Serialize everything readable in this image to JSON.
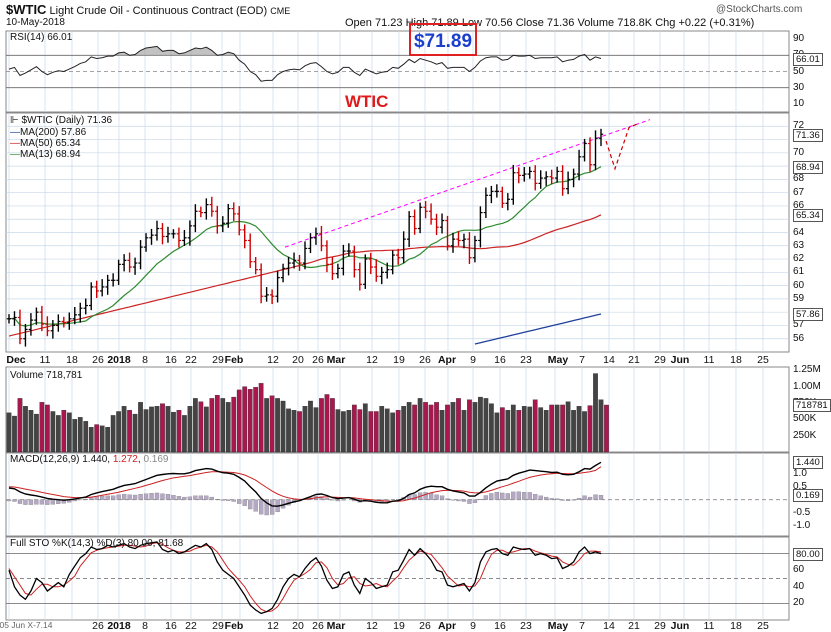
{
  "header": {
    "symbol": "$WTIC",
    "name": "Light Crude Oil - Continuous Contract (EOD)",
    "exchange": "CME",
    "date": "10-May-2018",
    "open_label": "Open",
    "open": "71.23",
    "high_label": "High",
    "high": "71.89",
    "low_label": "Low",
    "low": "70.56",
    "close_label": "Close",
    "close": "71.36",
    "volume_label": "Volume",
    "volume": "718.8K",
    "chg_label": "Chg",
    "chg": "+0.22 (+0.31%)",
    "watermark": "@StockCharts.com"
  },
  "annotations": {
    "high_box": "$71.89",
    "ticker_title": "WTIC"
  },
  "legend": {
    "price": "$WTIC (Daily) 71.36",
    "ma200": "MA(200) 57.86",
    "ma50": "MA(50) 65.34",
    "ma13": "MA(13) 68.94"
  },
  "panels": {
    "rsi": {
      "title": "RSI(14) 66.01",
      "last": "66.01",
      "ticks": [
        "90",
        "70",
        "50",
        "30",
        "10"
      ]
    },
    "volume": {
      "title": "Volume 718,781",
      "last": "718781",
      "ticks": [
        "1.25M",
        "1.00M",
        "750K",
        "500K",
        "250K"
      ]
    },
    "macd": {
      "title": "MACD(12,26,9) 1.440, 1.272, 0.169",
      "title_parts": [
        "MACD(12,26,9)",
        "1.440",
        "1.272",
        "0.169"
      ],
      "last": "1.440",
      "last2": "0.169",
      "ticks": [
        "1.5",
        "1.0",
        "0.5",
        "0.0",
        "-0.5",
        "-1.0"
      ]
    },
    "sto": {
      "title": "Full STO %K(14,3) %D(3) 80.00, 81.68",
      "last": "80.00",
      "ticks": [
        "80",
        "60",
        "40",
        "20"
      ]
    }
  },
  "price_axis": {
    "ticks": [
      "72",
      "71",
      "70",
      "69",
      "68",
      "67",
      "66",
      "65",
      "64",
      "63",
      "62",
      "61",
      "60",
      "59",
      "58",
      "57",
      "56"
    ],
    "last_labels": {
      "close": "71.36",
      "ma13": "68.94",
      "ma50": "65.34",
      "ma200": "57.86"
    }
  },
  "x_axis_main": [
    "Dec",
    "11",
    "18",
    "26",
    "2018",
    "8",
    "16",
    "22",
    "29",
    "Feb",
    "12",
    "20",
    "26",
    "Mar",
    "12",
    "19",
    "26",
    "Apr",
    "9",
    "16",
    "23",
    "May",
    "7",
    "14",
    "21",
    "29",
    "Jun",
    "11",
    "18",
    "25"
  ],
  "x_axis_bottom": [
    "05 Jun X-7.14",
    "26",
    "2018",
    "8",
    "16",
    "22",
    "29",
    "Feb",
    "12",
    "20",
    "26",
    "Mar",
    "12",
    "19",
    "26",
    "Apr",
    "9",
    "16",
    "23",
    "May",
    "7",
    "14",
    "21",
    "29",
    "Jun",
    "11",
    "18",
    "25"
  ],
  "colors": {
    "price_up": "#000000",
    "price_down": "#cc0000",
    "ma13": "#2e8b2e",
    "ma50": "#cc2222",
    "ma200": "#1f3f99",
    "trendline": "#ff00ff",
    "projection": "#cc0000",
    "vol_up": "#444444",
    "vol_down": "#a8184f",
    "grid": "#c8d8e8",
    "box": "#e02020"
  },
  "chart_data": [
    {
      "type": "ohlc",
      "title": "$WTIC (Daily) 71.36",
      "x": [
        "2017-12-04",
        "2017-12-05",
        "2017-12-06",
        "2017-12-07",
        "2017-12-08",
        "2017-12-11",
        "2017-12-12",
        "2017-12-13",
        "2017-12-14",
        "2017-12-15",
        "2017-12-18",
        "2017-12-19",
        "2017-12-20",
        "2017-12-21",
        "2017-12-22",
        "2017-12-26",
        "2017-12-27",
        "2017-12-28",
        "2017-12-29",
        "2018-01-02",
        "2018-01-03",
        "2018-01-04",
        "2018-01-05",
        "2018-01-08",
        "2018-01-09",
        "2018-01-10",
        "2018-01-11",
        "2018-01-12",
        "2018-01-16",
        "2018-01-17",
        "2018-01-18",
        "2018-01-19",
        "2018-01-22",
        "2018-01-23",
        "2018-01-24",
        "2018-01-25",
        "2018-01-26",
        "2018-01-29",
        "2018-01-30",
        "2018-01-31",
        "2018-02-01",
        "2018-02-02",
        "2018-02-05",
        "2018-02-06",
        "2018-02-07",
        "2018-02-08",
        "2018-02-09",
        "2018-02-12",
        "2018-02-13",
        "2018-02-14",
        "2018-02-15",
        "2018-02-16",
        "2018-02-20",
        "2018-02-21",
        "2018-02-22",
        "2018-02-23",
        "2018-02-26",
        "2018-02-27",
        "2018-02-28",
        "2018-03-01",
        "2018-03-02",
        "2018-03-05",
        "2018-03-06",
        "2018-03-07",
        "2018-03-08",
        "2018-03-09",
        "2018-03-12",
        "2018-03-13",
        "2018-03-14",
        "2018-03-15",
        "2018-03-16",
        "2018-03-19",
        "2018-03-20",
        "2018-03-21",
        "2018-03-22",
        "2018-03-23",
        "2018-03-26",
        "2018-03-27",
        "2018-03-28",
        "2018-03-29",
        "2018-04-02",
        "2018-04-03",
        "2018-04-04",
        "2018-04-05",
        "2018-04-06",
        "2018-04-09",
        "2018-04-10",
        "2018-04-11",
        "2018-04-12",
        "2018-04-13",
        "2018-04-16",
        "2018-04-17",
        "2018-04-18",
        "2018-04-19",
        "2018-04-20",
        "2018-04-23",
        "2018-04-24",
        "2018-04-25",
        "2018-04-26",
        "2018-04-27",
        "2018-04-30",
        "2018-05-01",
        "2018-05-02",
        "2018-05-03",
        "2018-05-04",
        "2018-05-07",
        "2018-05-08",
        "2018-05-09",
        "2018-05-10"
      ],
      "close": [
        57.5,
        57.6,
        56.0,
        56.7,
        57.4,
        58.0,
        57.1,
        56.6,
        57.0,
        57.3,
        57.2,
        57.5,
        57.8,
        58.3,
        58.5,
        59.9,
        59.6,
        59.9,
        60.4,
        60.4,
        61.6,
        61.9,
        61.4,
        61.7,
        62.9,
        63.6,
        63.8,
        64.3,
        63.7,
        63.9,
        63.9,
        63.4,
        63.6,
        64.5,
        65.6,
        65.5,
        66.1,
        65.6,
        64.5,
        64.7,
        65.8,
        65.4,
        64.2,
        63.4,
        61.8,
        61.2,
        59.2,
        59.3,
        59.2,
        60.6,
        61.3,
        61.7,
        61.9,
        61.7,
        62.8,
        63.6,
        63.9,
        63.0,
        61.6,
        60.9,
        61.3,
        62.6,
        62.6,
        61.2,
        60.1,
        62.0,
        61.4,
        60.7,
        61.0,
        61.2,
        62.3,
        62.1,
        63.5,
        65.2,
        64.3,
        65.9,
        65.6,
        65.0,
        64.4,
        64.9,
        63.0,
        63.5,
        63.4,
        63.5,
        62.1,
        63.4,
        65.5,
        66.8,
        67.1,
        67.1,
        66.2,
        66.5,
        68.5,
        68.3,
        68.4,
        68.6,
        67.7,
        68.1,
        68.2,
        68.1,
        68.6,
        67.3,
        68.0,
        68.4,
        69.7,
        70.7,
        69.1,
        71.1,
        71.4
      ],
      "ma13_last": 68.94,
      "ma50_last": 65.34,
      "ma200_last": 57.86,
      "ylim": [
        55,
        73
      ],
      "annotation_box": "$71.89"
    },
    {
      "type": "line",
      "title": "RSI(14) 66.01",
      "x_range": [
        "2017-12-04",
        "2018-05-10"
      ],
      "ylim": [
        0,
        100
      ],
      "values": [
        53,
        55,
        45,
        48,
        52,
        56,
        50,
        46,
        49,
        51,
        50,
        53,
        56,
        60,
        62,
        68,
        66,
        67,
        69,
        69,
        73,
        74,
        70,
        71,
        76,
        79,
        80,
        81,
        75,
        76,
        76,
        72,
        73,
        76,
        79,
        78,
        80,
        76,
        70,
        71,
        74,
        72,
        64,
        59,
        50,
        46,
        38,
        39,
        39,
        46,
        50,
        52,
        53,
        52,
        57,
        60,
        61,
        56,
        50,
        47,
        49,
        55,
        55,
        49,
        45,
        53,
        50,
        47,
        49,
        50,
        55,
        54,
        59,
        65,
        61,
        66,
        64,
        62,
        59,
        61,
        54,
        55,
        55,
        55,
        50,
        55,
        63,
        67,
        68,
        68,
        64,
        65,
        70,
        69,
        69,
        70,
        66,
        67,
        67,
        67,
        68,
        62,
        64,
        65,
        69,
        71,
        64,
        68,
        66
      ]
    },
    {
      "type": "bar",
      "title": "Volume 718,781",
      "ylim": [
        0,
        1300000
      ],
      "values": [
        600,
        550,
        820,
        700,
        640,
        580,
        760,
        720,
        620,
        560,
        640,
        600,
        500,
        530,
        470,
        380,
        420,
        400,
        380,
        560,
        620,
        700,
        640,
        580,
        760,
        650,
        690,
        700,
        740,
        700,
        610,
        640,
        560,
        700,
        820,
        770,
        690,
        820,
        870,
        820,
        760,
        840,
        950,
        1000,
        960,
        990,
        1050,
        820,
        860,
        820,
        780,
        660,
        640,
        620,
        700,
        780,
        680,
        820,
        880,
        820,
        650,
        620,
        640,
        720,
        650,
        740,
        620,
        620,
        700,
        660,
        600,
        640,
        700,
        760,
        720,
        820,
        760,
        720,
        760,
        640,
        720,
        760,
        820,
        640,
        800,
        760,
        840,
        820,
        740,
        600,
        680,
        640,
        720,
        640,
        700,
        690,
        800,
        680,
        640,
        720,
        720,
        720,
        770,
        640,
        700,
        620,
        710,
        1200,
        800,
        719
      ],
      "units": "thousands"
    },
    {
      "type": "line",
      "title": "MACD(12,26,9) 1.440, 1.272, 0.169",
      "ylim": [
        -1.4,
        1.8
      ],
      "series": [
        {
          "name": "MACD",
          "values": [
            0.45,
            0.42,
            0.3,
            0.22,
            0.18,
            0.15,
            0.1,
            0.05,
            0.02,
            0.0,
            -0.02,
            0.0,
            0.03,
            0.07,
            0.1,
            0.2,
            0.26,
            0.31,
            0.36,
            0.4,
            0.48,
            0.55,
            0.58,
            0.62,
            0.7,
            0.78,
            0.86,
            0.94,
            0.97,
            1.0,
            1.01,
            1.0,
            1.0,
            1.04,
            1.12,
            1.16,
            1.2,
            1.18,
            1.1,
            1.04,
            1.02,
            0.98,
            0.86,
            0.72,
            0.5,
            0.3,
            0.05,
            -0.12,
            -0.24,
            -0.25,
            -0.2,
            -0.14,
            -0.08,
            -0.04,
            0.04,
            0.12,
            0.2,
            0.22,
            0.16,
            0.08,
            0.04,
            0.06,
            0.08,
            0.02,
            -0.06,
            -0.04,
            -0.06,
            -0.1,
            -0.12,
            -0.12,
            -0.06,
            -0.04,
            0.05,
            0.2,
            0.26,
            0.4,
            0.48,
            0.52,
            0.5,
            0.5,
            0.4,
            0.34,
            0.3,
            0.26,
            0.14,
            0.14,
            0.28,
            0.46,
            0.6,
            0.72,
            0.76,
            0.8,
            0.94,
            1.02,
            1.08,
            1.14,
            1.12,
            1.1,
            1.08,
            1.05,
            1.06,
            0.98,
            0.96,
            0.98,
            1.08,
            1.2,
            1.18,
            1.32,
            1.44
          ]
        },
        {
          "name": "Signal",
          "values": [
            0.5,
            0.49,
            0.45,
            0.41,
            0.37,
            0.33,
            0.28,
            0.24,
            0.2,
            0.16,
            0.12,
            0.1,
            0.08,
            0.08,
            0.08,
            0.1,
            0.13,
            0.17,
            0.21,
            0.25,
            0.29,
            0.34,
            0.39,
            0.44,
            0.49,
            0.55,
            0.61,
            0.68,
            0.74,
            0.79,
            0.84,
            0.87,
            0.9,
            0.93,
            0.97,
            1.01,
            1.05,
            1.08,
            1.08,
            1.07,
            1.06,
            1.05,
            1.01,
            0.95,
            0.86,
            0.75,
            0.61,
            0.47,
            0.33,
            0.22,
            0.13,
            0.07,
            0.03,
            0.01,
            0.02,
            0.04,
            0.07,
            0.1,
            0.11,
            0.1,
            0.09,
            0.08,
            0.08,
            0.07,
            0.04,
            0.02,
            0.0,
            -0.02,
            -0.04,
            -0.06,
            -0.06,
            -0.06,
            -0.04,
            0.01,
            0.06,
            0.13,
            0.2,
            0.27,
            0.31,
            0.35,
            0.36,
            0.36,
            0.35,
            0.33,
            0.29,
            0.26,
            0.26,
            0.3,
            0.36,
            0.43,
            0.5,
            0.56,
            0.64,
            0.71,
            0.79,
            0.86,
            0.91,
            0.95,
            0.98,
            1.0,
            1.02,
            1.01,
            1.0,
            1.0,
            1.02,
            1.05,
            1.08,
            1.13,
            1.27
          ]
        }
      ]
    },
    {
      "type": "line",
      "title": "Full STO %K(14,3) %D(3) 80.00, 81.68",
      "ylim": [
        0,
        100
      ],
      "series": [
        {
          "name": "%K",
          "values": [
            60,
            40,
            30,
            25,
            35,
            50,
            45,
            35,
            40,
            45,
            40,
            55,
            65,
            75,
            80,
            88,
            85,
            86,
            90,
            88,
            90,
            92,
            88,
            86,
            90,
            92,
            93,
            94,
            85,
            82,
            84,
            80,
            82,
            86,
            90,
            88,
            92,
            85,
            70,
            60,
            55,
            50,
            40,
            30,
            18,
            12,
            8,
            10,
            14,
            25,
            40,
            50,
            55,
            52,
            62,
            70,
            75,
            65,
            48,
            38,
            40,
            55,
            58,
            42,
            32,
            50,
            45,
            38,
            40,
            42,
            58,
            60,
            72,
            85,
            78,
            86,
            80,
            72,
            60,
            58,
            42,
            40,
            42,
            44,
            35,
            45,
            70,
            82,
            85,
            86,
            80,
            78,
            88,
            86,
            85,
            86,
            78,
            80,
            78,
            74,
            75,
            62,
            65,
            70,
            82,
            88,
            80,
            82,
            80
          ]
        },
        {
          "name": "%D",
          "values": [
            62,
            52,
            42,
            32,
            30,
            37,
            43,
            43,
            40,
            40,
            42,
            47,
            53,
            65,
            73,
            81,
            84,
            86,
            87,
            88,
            89,
            90,
            90,
            89,
            88,
            89,
            92,
            93,
            91,
            87,
            84,
            82,
            82,
            83,
            86,
            88,
            90,
            88,
            82,
            72,
            62,
            55,
            48,
            40,
            29,
            20,
            13,
            10,
            11,
            16,
            26,
            38,
            48,
            52,
            56,
            61,
            69,
            70,
            63,
            50,
            42,
            44,
            51,
            52,
            44,
            41,
            42,
            44,
            41,
            40,
            47,
            53,
            63,
            72,
            78,
            83,
            81,
            79,
            71,
            63,
            53,
            47,
            41,
            42,
            40,
            41,
            50,
            66,
            79,
            84,
            84,
            81,
            82,
            84,
            86,
            86,
            83,
            81,
            79,
            77,
            76,
            70,
            67,
            66,
            72,
            80,
            83,
            83,
            82
          ]
        }
      ]
    }
  ]
}
